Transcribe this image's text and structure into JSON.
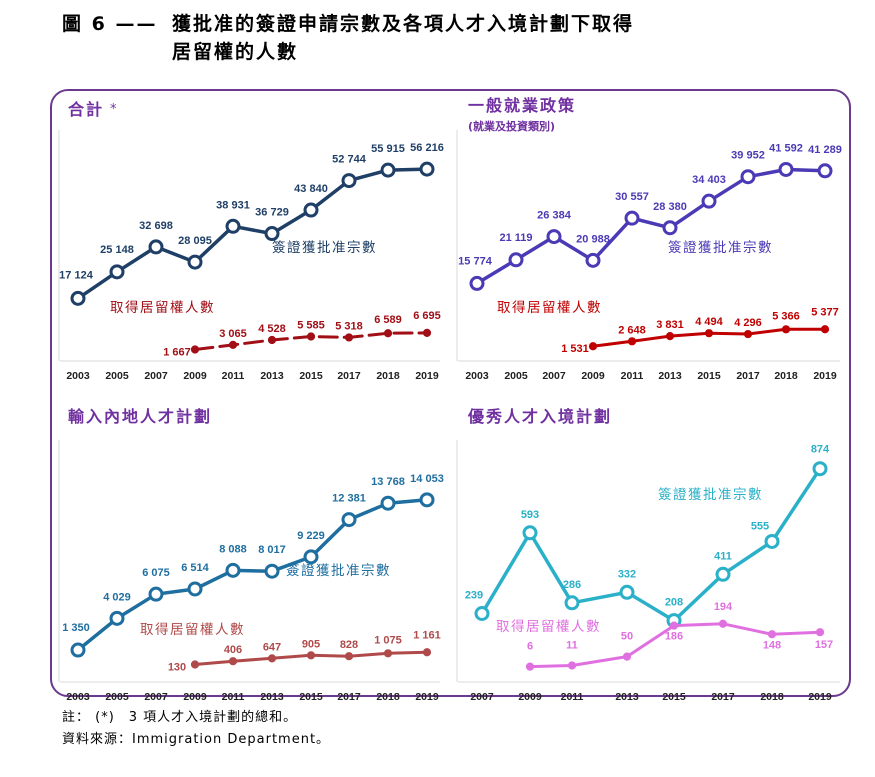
{
  "figure": {
    "number": "圖 6 ——",
    "title_line1": "獲批准的簽證申請宗數及各項人才入境計劃下取得",
    "title_line2": "居留權的人數"
  },
  "notes": {
    "note": "註： (*)　3 項人才入境計劃的總和。",
    "source": "資料來源：Immigration Department。"
  },
  "colors": {
    "frame": "#6b3a8e",
    "title_purple": "#7030a0",
    "total_approved": "#1f3f66",
    "total_abode": "#a10e16",
    "gep_approved": "#4b3ab5",
    "gep_abode": "#c00000",
    "asmtp_approved": "#1f6ea0",
    "asmtp_abode": "#b04a4a",
    "qmas_approved": "#2ab0c8",
    "qmas_abode": "#e070e0"
  },
  "chart_data": [
    {
      "id": "total",
      "type": "line",
      "title": "合計",
      "title_marker": "*",
      "subtitle": "",
      "x": [
        "2003",
        "2005",
        "2007",
        "2009",
        "2011",
        "2013",
        "2015",
        "2017",
        "2018",
        "2019"
      ],
      "series": [
        {
          "name": "簽證獲批准宗數",
          "values": [
            17124,
            25148,
            32698,
            28095,
            38931,
            36729,
            43840,
            52744,
            55915,
            56216
          ],
          "labels": [
            "17 124",
            "25 148",
            "32 698",
            "28 095",
            "38 931",
            "36 729",
            "43 840",
            "52 744",
            "55 915",
            "56 216"
          ]
        },
        {
          "name": "取得居留權人數",
          "values": [
            null,
            null,
            null,
            1667,
            3065,
            4528,
            5585,
            5318,
            6589,
            6695
          ],
          "labels": [
            "",
            "",
            "",
            "1 667",
            "3 065",
            "4 528",
            "5 585",
            "5 318",
            "6 589",
            "6 695"
          ]
        }
      ],
      "ylim": [
        0,
        62000
      ]
    },
    {
      "id": "gep",
      "type": "line",
      "title": "一般就業政策",
      "subtitle": "(就業及投資類別)",
      "x": [
        "2003",
        "2005",
        "2007",
        "2009",
        "2011",
        "2013",
        "2015",
        "2017",
        "2018",
        "2019"
      ],
      "series": [
        {
          "name": "簽證獲批准宗數",
          "values": [
            15774,
            21119,
            26384,
            20988,
            30557,
            28380,
            34403,
            39952,
            41592,
            41289
          ],
          "labels": [
            "15 774",
            "21 119",
            "26 384",
            "20 988",
            "30 557",
            "28 380",
            "34 403",
            "39 952",
            "41 592",
            "41 289"
          ]
        },
        {
          "name": "取得居留權人數",
          "values": [
            null,
            null,
            null,
            1531,
            2648,
            3831,
            4494,
            4296,
            5366,
            5377
          ],
          "labels": [
            "",
            "",
            "",
            "1 531",
            "2 648",
            "3 831",
            "4 494",
            "4 296",
            "5 366",
            "5 377"
          ]
        }
      ],
      "ylim": [
        0,
        46000
      ]
    },
    {
      "id": "asmtp",
      "type": "line",
      "title": "輸入內地人才計劃",
      "subtitle": "",
      "x": [
        "2003",
        "2005",
        "2007",
        "2009",
        "2011",
        "2013",
        "2015",
        "2017",
        "2018",
        "2019"
      ],
      "series": [
        {
          "name": "簽證獲批准宗數",
          "values": [
            1350,
            4029,
            6075,
            6514,
            8088,
            8017,
            9229,
            12381,
            13768,
            14053
          ],
          "labels": [
            "1 350",
            "4 029",
            "6 075",
            "6 514",
            "8 088",
            "8 017",
            "9 229",
            "12 381",
            "13 768",
            "14 053"
          ]
        },
        {
          "name": "取得居留權人數",
          "values": [
            null,
            null,
            null,
            130,
            406,
            647,
            905,
            828,
            1075,
            1161
          ],
          "labels": [
            "",
            "",
            "",
            "130",
            "406",
            "647",
            "905",
            "828",
            "1 075",
            "1 161"
          ]
        }
      ],
      "ylim": [
        0,
        15900
      ]
    },
    {
      "id": "qmas",
      "type": "line",
      "title": "優秀人才入境計劃",
      "subtitle": "",
      "x": [
        "2007",
        "2009",
        "2011",
        "2013",
        "2015",
        "2017",
        "2018",
        "2019"
      ],
      "series": [
        {
          "name": "簽證獲批准宗數",
          "values": [
            239,
            593,
            286,
            332,
            208,
            411,
            555,
            874
          ],
          "labels": [
            "239",
            "593",
            "286",
            "332",
            "208",
            "411",
            "555",
            "874"
          ]
        },
        {
          "name": "取得居留權人數",
          "values": [
            null,
            6,
            11,
            50,
            186,
            194,
            148,
            157
          ],
          "labels": [
            "",
            "6",
            "11",
            "50",
            "186",
            "194",
            "148",
            "157"
          ]
        }
      ],
      "ylim": [
        0,
        1000
      ]
    }
  ]
}
